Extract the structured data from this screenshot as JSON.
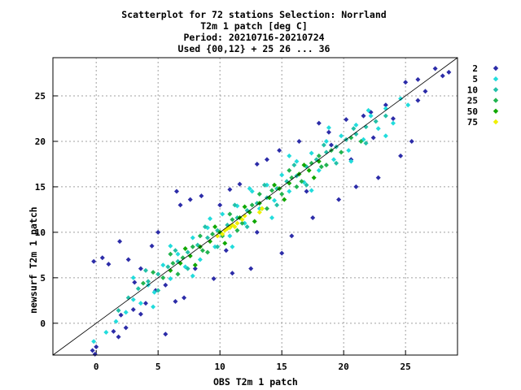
{
  "chart_data": {
    "type": "scatter",
    "title": [
      "Scatterplot for   72 stations Selection: Norrland",
      "T2m 1 patch [deg C]",
      "Period: 20210716-20210724",
      "Used {00,12} + 25 26 ... 36"
    ],
    "xlabel": "OBS T2m 1 patch",
    "ylabel": "newsurf T2m 1 patch",
    "xlim": [
      -3.5,
      29.2
    ],
    "ylim": [
      -3.5,
      29.2
    ],
    "xticks": [
      0,
      5,
      10,
      15,
      20,
      25
    ],
    "yticks": [
      0,
      5,
      10,
      15,
      20,
      25
    ],
    "grid": true,
    "legend_position": "right",
    "diagonal": "y = x",
    "density_bins": [
      {
        "label": "2",
        "color": "#2c2ca8"
      },
      {
        "label": "5",
        "color": "#22dcdc"
      },
      {
        "label": "10",
        "color": "#22c0a8"
      },
      {
        "label": "25",
        "color": "#22b450"
      },
      {
        "label": "50",
        "color": "#10a800"
      },
      {
        "label": "75",
        "color": "#f0f000"
      }
    ],
    "points": {
      "2": [
        [
          0,
          -2.6
        ],
        [
          -0.3,
          -3
        ],
        [
          -0.1,
          -3.4
        ],
        [
          -0.2,
          6.8
        ],
        [
          0.5,
          7.2
        ],
        [
          1,
          6.5
        ],
        [
          1.4,
          -0.9
        ],
        [
          1.8,
          -1.5
        ],
        [
          2,
          0.9
        ],
        [
          2.4,
          -0.5
        ],
        [
          1.9,
          9
        ],
        [
          2.6,
          7
        ],
        [
          3,
          1.5
        ],
        [
          3.1,
          4.5
        ],
        [
          3.6,
          1
        ],
        [
          4,
          2.2
        ],
        [
          4.5,
          8.5
        ],
        [
          5,
          10
        ],
        [
          5.6,
          -1.2
        ],
        [
          4.8,
          3.6
        ],
        [
          6.4,
          2.4
        ],
        [
          7.1,
          2.8
        ],
        [
          6.8,
          13
        ],
        [
          7.6,
          13.6
        ],
        [
          8.5,
          14
        ],
        [
          6.5,
          14.5
        ],
        [
          9.5,
          4.9
        ],
        [
          10,
          13
        ],
        [
          10.8,
          14.7
        ],
        [
          11.6,
          15.3
        ],
        [
          11,
          5.5
        ],
        [
          12.5,
          6
        ],
        [
          13,
          17.5
        ],
        [
          13.8,
          18
        ],
        [
          15,
          7.7
        ],
        [
          14.8,
          19
        ],
        [
          15.8,
          9.6
        ],
        [
          16.4,
          20
        ],
        [
          17.5,
          11.6
        ],
        [
          18,
          22
        ],
        [
          18.8,
          21
        ],
        [
          19.6,
          13.6
        ],
        [
          20.2,
          22.4
        ],
        [
          21,
          15
        ],
        [
          21.6,
          22.8
        ],
        [
          22.2,
          23.2
        ],
        [
          22.8,
          16
        ],
        [
          23.4,
          24
        ],
        [
          24,
          22.5
        ],
        [
          24.6,
          18.4
        ],
        [
          25,
          26.5
        ],
        [
          25.5,
          20
        ],
        [
          26,
          24.5
        ],
        [
          26.6,
          25.5
        ],
        [
          27.4,
          28
        ],
        [
          28,
          27.2
        ],
        [
          28.5,
          27.6
        ],
        [
          26,
          26.8
        ],
        [
          5.6,
          4.2
        ],
        [
          10.5,
          8
        ],
        [
          13,
          10
        ],
        [
          17,
          14.5
        ],
        [
          19,
          19.6
        ],
        [
          20.6,
          18
        ],
        [
          22.4,
          20.4
        ],
        [
          8,
          6
        ],
        [
          3.6,
          6
        ]
      ],
      "5": [
        [
          -0.2,
          -2
        ],
        [
          0.8,
          -1
        ],
        [
          1.6,
          0.2
        ],
        [
          2.4,
          1.2
        ],
        [
          3,
          2.6
        ],
        [
          3.6,
          2.2
        ],
        [
          4.2,
          4.2
        ],
        [
          4.7,
          3.4
        ],
        [
          5.4,
          6.4
        ],
        [
          6,
          4.9
        ],
        [
          6.6,
          7.6
        ],
        [
          7.2,
          6.2
        ],
        [
          7.8,
          9.4
        ],
        [
          8.4,
          7
        ],
        [
          9,
          10.5
        ],
        [
          9.6,
          8.4
        ],
        [
          10.2,
          12
        ],
        [
          10.8,
          9.6
        ],
        [
          11.4,
          12.9
        ],
        [
          12,
          11
        ],
        [
          12.6,
          14.5
        ],
        [
          13.2,
          12.6
        ],
        [
          13.8,
          15.2
        ],
        [
          14.4,
          13.5
        ],
        [
          15,
          16.3
        ],
        [
          15.6,
          14.5
        ],
        [
          16.2,
          17.8
        ],
        [
          16.8,
          15.5
        ],
        [
          17.4,
          18.7
        ],
        [
          18,
          16.8
        ],
        [
          18.6,
          20
        ],
        [
          19.2,
          18
        ],
        [
          19.8,
          20.6
        ],
        [
          20.4,
          19
        ],
        [
          21,
          21.8
        ],
        [
          21.6,
          20.2
        ],
        [
          22.2,
          22.8
        ],
        [
          22.8,
          21.4
        ],
        [
          23.4,
          23.6
        ],
        [
          24,
          22
        ],
        [
          24.6,
          24.7
        ],
        [
          25.2,
          24
        ],
        [
          3,
          5
        ],
        [
          6,
          8.5
        ],
        [
          9.2,
          11.5
        ],
        [
          12.4,
          14.8
        ],
        [
          15.6,
          18.4
        ],
        [
          18.8,
          21.5
        ],
        [
          22,
          23.4
        ],
        [
          4.6,
          1.8
        ],
        [
          7.8,
          5.2
        ],
        [
          11,
          8.4
        ],
        [
          14.2,
          11.6
        ],
        [
          17.4,
          14.6
        ],
        [
          20.6,
          17.8
        ],
        [
          23.4,
          20.6
        ]
      ],
      "10": [
        [
          1.8,
          1.4
        ],
        [
          2.6,
          2.8
        ],
        [
          3.4,
          3.8
        ],
        [
          4.2,
          4.6
        ],
        [
          5,
          5.4
        ],
        [
          5.8,
          6.2
        ],
        [
          6.6,
          6.8
        ],
        [
          7.4,
          7.8
        ],
        [
          8.2,
          8.6
        ],
        [
          9,
          9.4
        ],
        [
          9.8,
          10.2
        ],
        [
          10.6,
          10.8
        ],
        [
          11.4,
          11.6
        ],
        [
          12.2,
          12.4
        ],
        [
          13,
          13.2
        ],
        [
          13.8,
          13.8
        ],
        [
          14.6,
          14.8
        ],
        [
          15.4,
          15.6
        ],
        [
          16.2,
          16.2
        ],
        [
          17,
          17.2
        ],
        [
          17.8,
          18
        ],
        [
          18.6,
          18.8
        ],
        [
          19.4,
          19.4
        ],
        [
          20.2,
          20.2
        ],
        [
          21,
          20.8
        ],
        [
          21.8,
          21.6
        ],
        [
          22.6,
          22.2
        ],
        [
          23.4,
          22.8
        ],
        [
          4,
          5.8
        ],
        [
          6.4,
          8
        ],
        [
          8.8,
          10.6
        ],
        [
          11.2,
          13
        ],
        [
          13.6,
          15.2
        ],
        [
          16,
          17.4
        ],
        [
          18.4,
          19.6
        ],
        [
          20.8,
          21.4
        ],
        [
          5,
          3.6
        ],
        [
          7.4,
          6
        ],
        [
          9.8,
          8.4
        ],
        [
          12.2,
          10.6
        ],
        [
          14.6,
          13
        ],
        [
          17,
          15.2
        ],
        [
          19.4,
          17.6
        ],
        [
          21.8,
          19.8
        ]
      ],
      "25": [
        [
          3.8,
          4.4
        ],
        [
          4.6,
          5.6
        ],
        [
          5.4,
          5
        ],
        [
          6.2,
          6.6
        ],
        [
          7,
          7.2
        ],
        [
          7.8,
          8.4
        ],
        [
          8.6,
          8
        ],
        [
          9.4,
          9.8
        ],
        [
          10.2,
          9.6
        ],
        [
          11,
          11.4
        ],
        [
          11.8,
          11
        ],
        [
          12.6,
          13
        ],
        [
          13.4,
          12.6
        ],
        [
          14.2,
          14.6
        ],
        [
          15,
          14.2
        ],
        [
          15.8,
          16
        ],
        [
          16.6,
          15.6
        ],
        [
          17.4,
          17.6
        ],
        [
          18.2,
          17.2
        ],
        [
          19,
          19
        ],
        [
          19.8,
          18.8
        ],
        [
          20.6,
          20.4
        ],
        [
          21.4,
          20
        ],
        [
          6,
          7.6
        ],
        [
          8.4,
          9.6
        ],
        [
          10.8,
          12
        ],
        [
          13.2,
          14.2
        ],
        [
          15.6,
          16.8
        ],
        [
          18,
          18.4
        ],
        [
          6.6,
          5.4
        ],
        [
          9,
          7.8
        ],
        [
          11.4,
          10.2
        ],
        [
          13.8,
          12.6
        ],
        [
          16.2,
          15
        ],
        [
          18.6,
          17.4
        ]
      ],
      "50": [
        [
          6,
          5.8
        ],
        [
          6.8,
          6.6
        ],
        [
          7.6,
          7.4
        ],
        [
          8.4,
          8.4
        ],
        [
          9.2,
          9
        ],
        [
          10,
          10
        ],
        [
          10.8,
          10.6
        ],
        [
          11.6,
          11.6
        ],
        [
          12.4,
          12.2
        ],
        [
          13.2,
          13.2
        ],
        [
          14,
          13.8
        ],
        [
          14.8,
          14.8
        ],
        [
          15.6,
          15.4
        ],
        [
          16.4,
          16.4
        ],
        [
          17.2,
          16.8
        ],
        [
          18,
          17.8
        ],
        [
          7.2,
          8.2
        ],
        [
          9.6,
          10.6
        ],
        [
          12,
          12.8
        ],
        [
          14.4,
          15.2
        ],
        [
          16.8,
          17.4
        ],
        [
          8,
          6.4
        ],
        [
          10.4,
          8.8
        ],
        [
          12.8,
          11.2
        ],
        [
          15.2,
          13.6
        ],
        [
          17.6,
          16
        ]
      ],
      "75": [
        [
          9.8,
          9.6
        ],
        [
          10.2,
          9.8
        ],
        [
          10.4,
          10.2
        ],
        [
          10.8,
          10.5
        ],
        [
          11.2,
          10.6
        ],
        [
          11.4,
          11
        ],
        [
          11.8,
          11.4
        ],
        [
          12,
          11.8
        ],
        [
          11,
          10.8
        ],
        [
          10.6,
          10.4
        ],
        [
          13.2,
          12.2
        ],
        [
          13.4,
          12.6
        ]
      ]
    }
  }
}
